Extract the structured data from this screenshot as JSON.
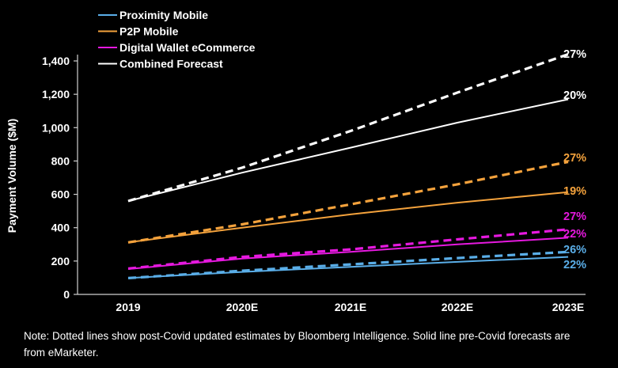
{
  "chart_data": {
    "type": "line",
    "title": "",
    "xlabel": "",
    "ylabel": "Payment Volume ($M)",
    "ylim": [
      0,
      1400
    ],
    "yticks": [
      0,
      200,
      400,
      600,
      800,
      1000,
      1200,
      1400
    ],
    "ytick_labels": [
      "0",
      "200",
      "400",
      "600",
      "800",
      "1,000",
      "1,200",
      "1,400"
    ],
    "categories": [
      "2019",
      "2020E",
      "2021E",
      "2022E",
      "2023E"
    ],
    "legend_position": "top-left",
    "series": [
      {
        "name": "Proximity Mobile",
        "color": "#5aaee8",
        "solid": [
          98,
          135,
          165,
          195,
          225
        ],
        "solid_label": "22%",
        "dashed": [
          98,
          142,
          180,
          218,
          255
        ],
        "dashed_label": "26%"
      },
      {
        "name": "P2P Mobile",
        "color": "#f4a23c",
        "solid": [
          312,
          400,
          480,
          550,
          613
        ],
        "solid_label": "19%",
        "dashed": [
          312,
          420,
          540,
          660,
          795
        ],
        "dashed_label": "27%"
      },
      {
        "name": "Digital Wallet eCommerce",
        "color": "#e619df",
        "solid": [
          152,
          215,
          255,
          300,
          340
        ],
        "solid_label": "22%",
        "dashed": [
          155,
          225,
          270,
          330,
          390
        ],
        "dashed_label": "27%"
      },
      {
        "name": "Combined Forecast",
        "color": "#ffffff",
        "solid": [
          560,
          730,
          880,
          1030,
          1170
        ],
        "solid_label": "20%",
        "dashed": [
          560,
          760,
          980,
          1210,
          1440
        ],
        "dashed_label": "27%"
      }
    ]
  },
  "note": "Note: Dotted lines show post-Covid updated estimates by Bloomberg Intelligence. Solid line pre-Covid forecasts are from eMarketer."
}
